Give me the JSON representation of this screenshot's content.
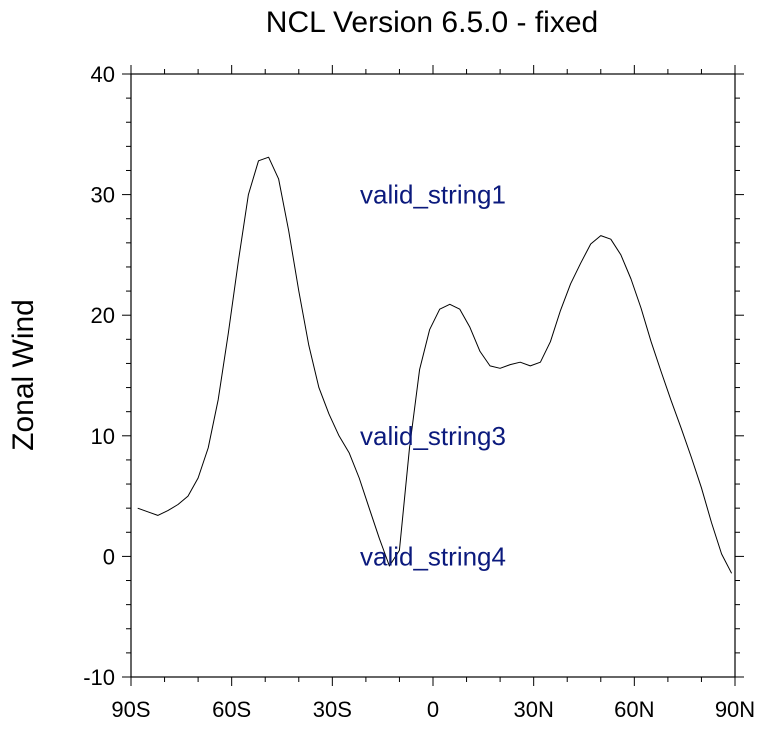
{
  "chart_data": {
    "type": "line",
    "title": "NCL Version 6.5.0 - fixed",
    "xlabel": "",
    "ylabel": "Zonal Wind",
    "xlim": [
      -90,
      90
    ],
    "ylim": [
      -10,
      40
    ],
    "x_ticks": [
      {
        "value": -90,
        "label": "90S"
      },
      {
        "value": -60,
        "label": "60S"
      },
      {
        "value": -30,
        "label": "30S"
      },
      {
        "value": 0,
        "label": "0"
      },
      {
        "value": 30,
        "label": "30N"
      },
      {
        "value": 60,
        "label": "60N"
      },
      {
        "value": 90,
        "label": "90N"
      }
    ],
    "y_ticks": [
      {
        "value": -10,
        "label": "-10"
      },
      {
        "value": 0,
        "label": "0"
      },
      {
        "value": 10,
        "label": "10"
      },
      {
        "value": 20,
        "label": "20"
      },
      {
        "value": 30,
        "label": "30"
      },
      {
        "value": 40,
        "label": "40"
      }
    ],
    "grid": false,
    "line_color": "#000000",
    "series": [
      {
        "x": [
          -88,
          -85,
          -82,
          -79,
          -76,
          -73,
          -70,
          -67,
          -64,
          -61,
          -58,
          -55,
          -52,
          -49,
          -46,
          -43,
          -40,
          -37,
          -34,
          -31,
          -28,
          -25,
          -22,
          -19,
          -16,
          -13,
          -10,
          -7,
          -4,
          -1,
          2,
          5,
          8,
          11,
          14,
          17,
          20,
          23,
          26,
          29,
          32,
          35,
          38,
          41,
          44,
          47,
          50,
          53,
          56,
          59,
          62,
          65,
          68,
          71,
          74,
          77,
          80,
          83,
          86,
          89
        ],
        "y": [
          4.0,
          3.7,
          3.4,
          3.8,
          4.3,
          5.0,
          6.5,
          9.0,
          13.0,
          18.5,
          24.5,
          30.0,
          32.8,
          33.1,
          31.3,
          27.0,
          22.0,
          17.5,
          14.0,
          11.8,
          10.0,
          8.6,
          6.5,
          4.0,
          1.5,
          -0.8,
          0.5,
          9.0,
          15.5,
          18.8,
          20.5,
          20.9,
          20.5,
          19.0,
          17.0,
          15.8,
          15.6,
          15.9,
          16.1,
          15.8,
          16.1,
          17.8,
          20.4,
          22.6,
          24.3,
          25.9,
          26.6,
          26.3,
          25.0,
          23.0,
          20.6,
          17.8,
          15.3,
          12.9,
          10.6,
          8.2,
          5.7,
          2.8,
          0.2,
          -1.4
        ]
      }
    ],
    "annotations": [
      {
        "text": "valid_string1",
        "x": 0,
        "y": 30
      },
      {
        "text": "valid_string3",
        "x": 0,
        "y": 10
      },
      {
        "text": "valid_string4",
        "x": 0,
        "y": 0
      }
    ],
    "annotation_color": "#0b1a7d"
  }
}
